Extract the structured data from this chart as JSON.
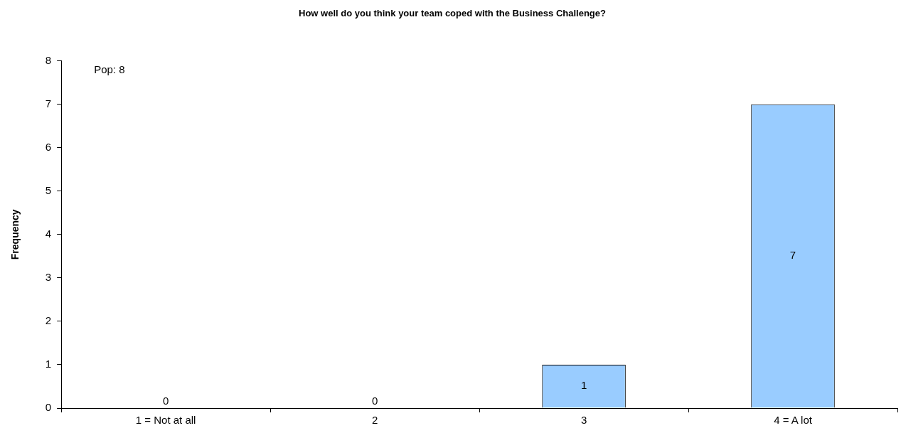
{
  "chart_data": {
    "type": "bar",
    "title": "How well do you think your team coped with the Business Challenge?",
    "ylabel": "Frequency",
    "categories": [
      "1 = Not at all",
      "2",
      "3",
      "4 = A lot"
    ],
    "values": [
      0,
      0,
      1,
      7
    ],
    "color": "#99ccff",
    "ylim": [
      0,
      8
    ],
    "yticks": [
      0,
      1,
      2,
      3,
      4,
      5,
      6,
      7,
      8
    ],
    "grid": false,
    "legend": false,
    "data_labels": true,
    "annotations": [
      "Pop: 8"
    ]
  }
}
